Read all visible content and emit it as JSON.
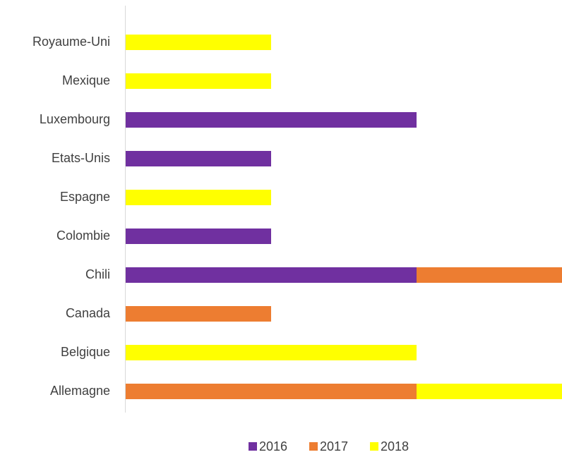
{
  "chart_data": {
    "type": "stacked-bar-horizontal",
    "categories": [
      "Allemagne",
      "Belgique",
      "Canada",
      "Chili",
      "Colombie",
      "Espagne",
      "Etats-Unis",
      "Luxembourg",
      "Mexique",
      "Royaume-Uni"
    ],
    "series": [
      {
        "name": "2016",
        "color": "#7030a0",
        "values": [
          null,
          null,
          null,
          2,
          1,
          null,
          1,
          2,
          null,
          null
        ]
      },
      {
        "name": "2017",
        "color": "#ed7d31",
        "values": [
          2,
          null,
          1,
          1,
          null,
          null,
          null,
          null,
          null,
          null
        ]
      },
      {
        "name": "2018",
        "color": "#ffff00",
        "values": [
          1,
          2,
          null,
          null,
          null,
          1,
          null,
          null,
          1,
          1
        ]
      }
    ],
    "xlim": [
      0,
      3
    ],
    "legend": "bottom"
  }
}
